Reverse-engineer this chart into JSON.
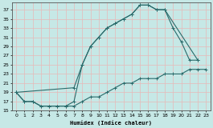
{
  "xlabel": "Humidex (Indice chaleur)",
  "bg_color": "#c6e8e6",
  "grid_color": "#b0d8d5",
  "line_color": "#2a6b6b",
  "xlim": [
    -0.5,
    23.5
  ],
  "ylim": [
    15,
    38.5
  ],
  "yticks": [
    15,
    17,
    19,
    21,
    23,
    25,
    27,
    29,
    31,
    33,
    35,
    37
  ],
  "xticks": [
    0,
    1,
    2,
    3,
    4,
    5,
    6,
    7,
    8,
    9,
    10,
    11,
    12,
    13,
    14,
    15,
    16,
    17,
    18,
    19,
    20,
    21,
    22,
    23
  ],
  "curve1_x": [
    0,
    1,
    2,
    3,
    4,
    5,
    6,
    7,
    8,
    9,
    10,
    11,
    12,
    13,
    14,
    15,
    16,
    17,
    18,
    22
  ],
  "curve1_y": [
    19,
    17,
    17,
    16,
    16,
    16,
    16,
    17,
    25,
    29,
    31,
    33,
    34,
    35,
    36,
    38,
    38,
    37,
    37,
    26
  ],
  "curve2_x": [
    0,
    7,
    8,
    9,
    10,
    11,
    12,
    13,
    14,
    15,
    16,
    17,
    18,
    19,
    20,
    21,
    22
  ],
  "curve2_y": [
    19,
    20,
    25,
    29,
    31,
    33,
    34,
    35,
    36,
    38,
    38,
    37,
    37,
    33,
    30,
    26,
    26
  ],
  "curve3_x": [
    0,
    1,
    2,
    3,
    4,
    5,
    6,
    7,
    8,
    9,
    10,
    11,
    12,
    13,
    14,
    15,
    16,
    17,
    18,
    19,
    20,
    21,
    22,
    23
  ],
  "curve3_y": [
    19,
    17,
    17,
    16,
    16,
    16,
    16,
    16,
    17,
    18,
    18,
    19,
    20,
    21,
    21,
    22,
    22,
    22,
    23,
    23,
    23,
    24,
    24,
    24
  ]
}
